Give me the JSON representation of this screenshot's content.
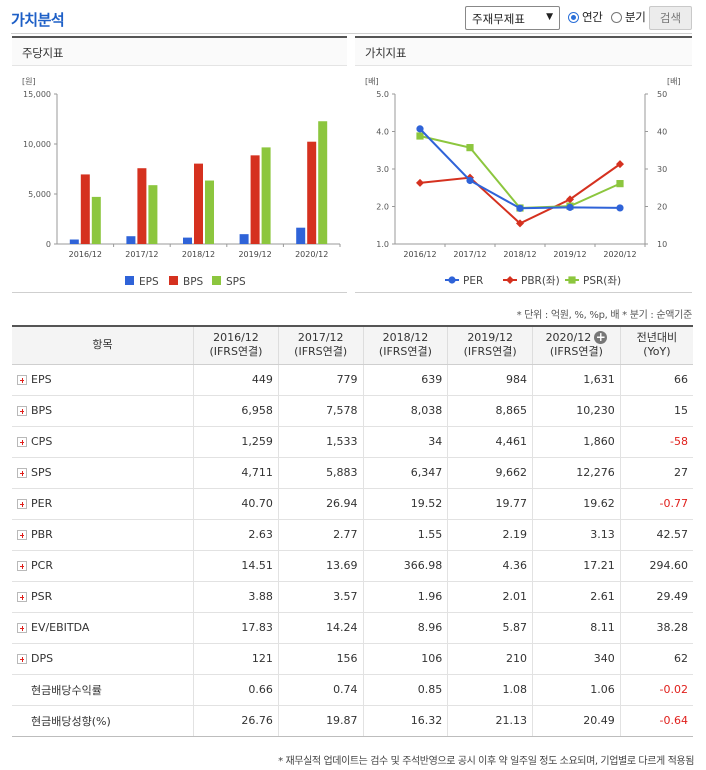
{
  "header": {
    "title": "가치분석",
    "select_value": "주재무제표",
    "radio_annual": "연간",
    "radio_quarter": "분기",
    "search_button": "검색"
  },
  "left_panel": {
    "title": "주당지표"
  },
  "right_panel": {
    "title": "가치지표"
  },
  "chart_data": [
    {
      "type": "bar",
      "title": "주당지표",
      "ylabel": "[원]",
      "ylim": [
        0,
        15000
      ],
      "yticks": [
        "0",
        "5,000",
        "10,000",
        "15,000"
      ],
      "categories": [
        "2016/12",
        "2017/12",
        "2018/12",
        "2019/12",
        "2020/12"
      ],
      "series": [
        {
          "name": "EPS",
          "color": "#2f63d8",
          "values": [
            449,
            779,
            639,
            984,
            1631
          ]
        },
        {
          "name": "BPS",
          "color": "#d5311f",
          "values": [
            6958,
            7578,
            8038,
            8865,
            10230
          ]
        },
        {
          "name": "SPS",
          "color": "#8cc63e",
          "values": [
            4711,
            5883,
            6347,
            9662,
            12276
          ]
        }
      ],
      "legend_position": "bottom"
    },
    {
      "type": "line",
      "title": "가치지표",
      "ylabel_left": "[배]",
      "ylabel_right": "[배]",
      "ylim_left": [
        1.0,
        5.0
      ],
      "ylim_right": [
        10,
        50
      ],
      "yticks_left": [
        "1.0",
        "2.0",
        "3.0",
        "4.0",
        "5.0"
      ],
      "yticks_right": [
        "10",
        "20",
        "30",
        "40",
        "50"
      ],
      "categories": [
        "2016/12",
        "2017/12",
        "2018/12",
        "2019/12",
        "2020/12"
      ],
      "series": [
        {
          "name": "PER",
          "axis": "right",
          "color": "#2f63d8",
          "marker": "circle",
          "values": [
            40.7,
            26.94,
            19.52,
            19.77,
            19.62
          ]
        },
        {
          "name": "PBR(좌)",
          "axis": "left",
          "color": "#d5311f",
          "marker": "diamond",
          "values": [
            2.63,
            2.77,
            1.55,
            2.19,
            3.13
          ]
        },
        {
          "name": "PSR(좌)",
          "axis": "left",
          "color": "#8cc63e",
          "marker": "square",
          "values": [
            3.88,
            3.57,
            1.96,
            2.01,
            2.61
          ]
        }
      ],
      "legend_position": "bottom"
    }
  ],
  "note": "* 단위 : 억원, %, %p, 배    * 분기 : 순액기준",
  "table": {
    "headers": [
      {
        "line1": "항목",
        "line2": ""
      },
      {
        "line1": "2016/12",
        "line2": "(IFRS연결)"
      },
      {
        "line1": "2017/12",
        "line2": "(IFRS연결)"
      },
      {
        "line1": "2018/12",
        "line2": "(IFRS연결)"
      },
      {
        "line1": "2019/12",
        "line2": "(IFRS연결)"
      },
      {
        "line1": "2020/12",
        "line2": "(IFRS연결)"
      },
      {
        "line1": "전년대비",
        "line2": "(YoY)"
      }
    ],
    "rows": [
      {
        "label": "EPS",
        "expand": true,
        "values": [
          "449",
          "779",
          "639",
          "984",
          "1,631",
          "66"
        ],
        "neg": false
      },
      {
        "label": "BPS",
        "expand": true,
        "values": [
          "6,958",
          "7,578",
          "8,038",
          "8,865",
          "10,230",
          "15"
        ],
        "neg": false
      },
      {
        "label": "CPS",
        "expand": true,
        "values": [
          "1,259",
          "1,533",
          "34",
          "4,461",
          "1,860",
          "-58"
        ],
        "neg": true
      },
      {
        "label": "SPS",
        "expand": true,
        "values": [
          "4,711",
          "5,883",
          "6,347",
          "9,662",
          "12,276",
          "27"
        ],
        "neg": false
      },
      {
        "label": "PER",
        "expand": true,
        "values": [
          "40.70",
          "26.94",
          "19.52",
          "19.77",
          "19.62",
          "-0.77"
        ],
        "neg": true
      },
      {
        "label": "PBR",
        "expand": true,
        "values": [
          "2.63",
          "2.77",
          "1.55",
          "2.19",
          "3.13",
          "42.57"
        ],
        "neg": false
      },
      {
        "label": "PCR",
        "expand": true,
        "values": [
          "14.51",
          "13.69",
          "366.98",
          "4.36",
          "17.21",
          "294.60"
        ],
        "neg": false
      },
      {
        "label": "PSR",
        "expand": true,
        "values": [
          "3.88",
          "3.57",
          "1.96",
          "2.01",
          "2.61",
          "29.49"
        ],
        "neg": false
      },
      {
        "label": "EV/EBITDA",
        "expand": true,
        "values": [
          "17.83",
          "14.24",
          "8.96",
          "5.87",
          "8.11",
          "38.28"
        ],
        "neg": false
      },
      {
        "label": "DPS",
        "expand": true,
        "values": [
          "121",
          "156",
          "106",
          "210",
          "340",
          "62"
        ],
        "neg": false
      },
      {
        "label": "현금배당수익률",
        "expand": false,
        "values": [
          "0.66",
          "0.74",
          "0.85",
          "1.08",
          "1.06",
          "-0.02"
        ],
        "neg": true
      },
      {
        "label": "현금배당성향(%)",
        "expand": false,
        "values": [
          "26.76",
          "19.87",
          "16.32",
          "21.13",
          "20.49",
          "-0.64"
        ],
        "neg": true
      }
    ]
  },
  "footer": "* 재무실적 업데이트는 검수 및 주석반영으로 공시 이후 약 일주일 정도 소요되며, 기업별로 다르게 적용됨"
}
